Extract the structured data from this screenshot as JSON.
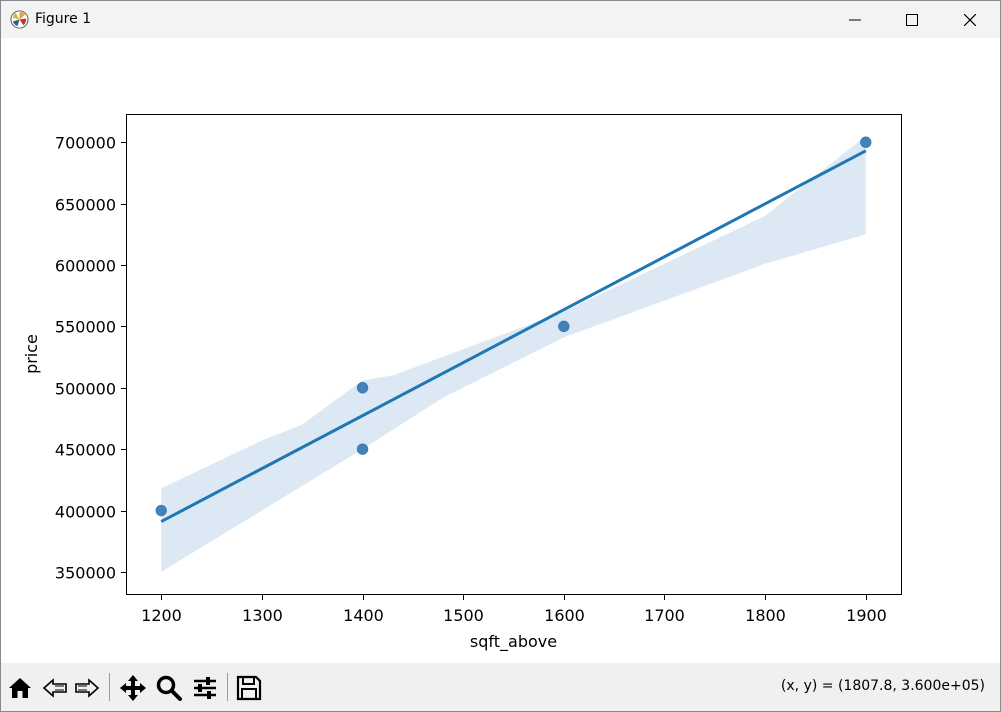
{
  "window": {
    "title": "Figure 1"
  },
  "toolbar": {
    "coords_text": "(x, y) = (1807.8, 3.600e+05)"
  },
  "chart_data": {
    "type": "scatter",
    "title": "",
    "xlabel": "sqft_above",
    "ylabel": "price",
    "xlim": [
      1165,
      1935
    ],
    "ylim": [
      332000,
      723000
    ],
    "x_ticks": [
      1200,
      1300,
      1400,
      1500,
      1600,
      1700,
      1800,
      1900
    ],
    "x_tick_labels": [
      "1200",
      "1300",
      "1400",
      "1500",
      "1600",
      "1700",
      "1800",
      "1900"
    ],
    "y_ticks": [
      350000,
      400000,
      450000,
      500000,
      550000,
      600000,
      650000,
      700000
    ],
    "y_tick_labels": [
      "350000",
      "400000",
      "450000",
      "500000",
      "550000",
      "600000",
      "650000",
      "700000"
    ],
    "points": [
      {
        "x": 1200,
        "y": 400000
      },
      {
        "x": 1400,
        "y": 500000
      },
      {
        "x": 1400,
        "y": 450000
      },
      {
        "x": 1600,
        "y": 550000
      },
      {
        "x": 1900,
        "y": 700000
      }
    ],
    "regression_line": {
      "x": [
        1200,
        1900
      ],
      "y": [
        391000,
        693000
      ]
    },
    "confidence_band": {
      "upper": [
        {
          "x": 1200,
          "y": 418000
        },
        {
          "x": 1300,
          "y": 457000
        },
        {
          "x": 1340,
          "y": 470000
        },
        {
          "x": 1400,
          "y": 506000
        },
        {
          "x": 1430,
          "y": 510000
        },
        {
          "x": 1600,
          "y": 562000
        },
        {
          "x": 1800,
          "y": 640000
        },
        {
          "x": 1900,
          "y": 705000
        }
      ],
      "lower": [
        {
          "x": 1900,
          "y": 625000
        },
        {
          "x": 1800,
          "y": 601000
        },
        {
          "x": 1600,
          "y": 541000
        },
        {
          "x": 1480,
          "y": 492000
        },
        {
          "x": 1400,
          "y": 450000
        },
        {
          "x": 1300,
          "y": 400000
        },
        {
          "x": 1200,
          "y": 350000
        }
      ]
    },
    "colors": {
      "point": "#3b7bb5",
      "line": "#1f77b4",
      "band": "#dce8f3"
    }
  }
}
